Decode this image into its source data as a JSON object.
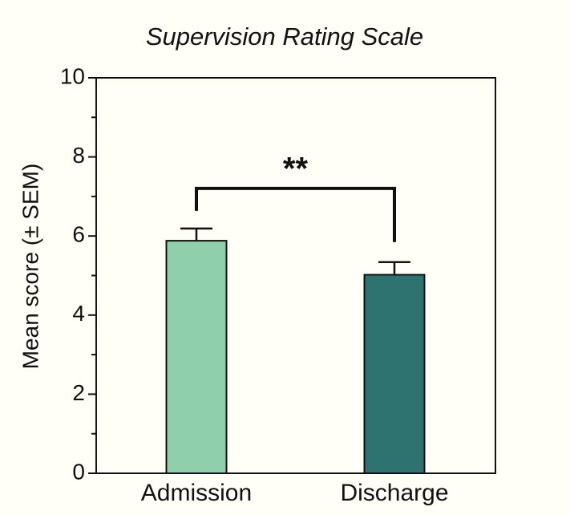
{
  "chart_data": {
    "type": "bar",
    "title": "Supervision Rating Scale",
    "y_label": "Mean score (± SEM)",
    "categories": [
      "Admission",
      "Discharge"
    ],
    "values": [
      5.88,
      5.02
    ],
    "errors": [
      0.31,
      0.32
    ],
    "colors": [
      "#8fcfab",
      "#2f7370"
    ],
    "ylim": [
      0,
      10
    ],
    "yticks": [
      0,
      2,
      4,
      6,
      8,
      10
    ],
    "yminorticks": [
      1,
      3,
      5,
      7,
      9
    ],
    "annotation": "**"
  }
}
